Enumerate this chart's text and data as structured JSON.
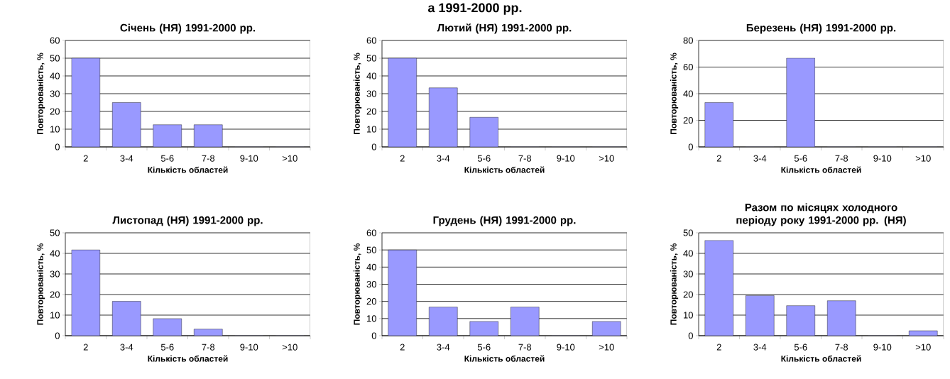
{
  "chart_data": [
    {
      "type": "other",
      "title": "а 1991-2000 рр."
    },
    {
      "type": "bar",
      "title": "Січень (НЯ) 1991-2000 рр.",
      "xlabel": "Кількість областей",
      "ylabel": "Повторюваність, %",
      "categories": [
        "2",
        "3-4",
        "5-6",
        "7-8",
        "9-10",
        ">10"
      ],
      "values": [
        50,
        25,
        12.5,
        12.5,
        0,
        0
      ],
      "color": "#9999ff",
      "ylim": [
        0,
        60
      ],
      "yticks": [
        0,
        10,
        20,
        30,
        40,
        50,
        60
      ],
      "grid": "y"
    },
    {
      "type": "bar",
      "title": "Лютий (НЯ) 1991-2000 рр.",
      "xlabel": "Кількість областей",
      "ylabel": "Повторюваність, %",
      "categories": [
        "2",
        "3-4",
        "5-6",
        "7-8",
        "9-10",
        ">10"
      ],
      "values": [
        50,
        33.3,
        16.7,
        0,
        0,
        0
      ],
      "color": "#9999ff",
      "ylim": [
        0,
        60
      ],
      "yticks": [
        0,
        10,
        20,
        30,
        40,
        50,
        60
      ],
      "grid": "y"
    },
    {
      "type": "bar",
      "title": "Березень (НЯ) 1991-2000 рр.",
      "xlabel": "Кількість областей",
      "ylabel": "Повторюваність, %",
      "categories": [
        "2",
        "3-4",
        "5-6",
        "7-8",
        "9-10",
        ">10"
      ],
      "values": [
        33.3,
        0,
        66.7,
        0,
        0,
        0
      ],
      "color": "#9999ff",
      "ylim": [
        0,
        80
      ],
      "yticks": [
        0,
        20,
        40,
        60,
        80
      ],
      "grid": "y"
    },
    {
      "type": "bar",
      "title": "Листопад (НЯ) 1991-2000 рр.",
      "xlabel": "Кількість областей",
      "ylabel": "Повторюваність, %",
      "categories": [
        "2",
        "3-4",
        "5-6",
        "7-8",
        "9-10",
        ">10"
      ],
      "values": [
        41.7,
        16.7,
        8.3,
        3.2,
        0,
        0
      ],
      "color": "#9999ff",
      "ylim": [
        0,
        50
      ],
      "yticks": [
        0,
        10,
        20,
        30,
        40,
        50
      ],
      "grid": "y"
    },
    {
      "type": "bar",
      "title": "Грудень (НЯ) 1991-2000 рр.",
      "xlabel": "Кількість областей",
      "ylabel": "Повторюваність, %",
      "categories": [
        "2",
        "3-4",
        "5-6",
        "7-8",
        "9-10",
        ">10"
      ],
      "values": [
        50,
        16.7,
        8.3,
        16.7,
        0,
        8.3
      ],
      "color": "#9999ff",
      "ylim": [
        0,
        60
      ],
      "yticks": [
        0,
        10,
        20,
        30,
        40,
        50,
        60
      ],
      "grid": "y"
    },
    {
      "type": "bar",
      "title": "Разом по місяцях холодного періоду року 1991-2000 рр. (НЯ)",
      "xlabel": "Кількість областей",
      "ylabel": "Повторюваність, %",
      "categories": [
        "2",
        "3-4",
        "5-6",
        "7-8",
        "9-10",
        ">10"
      ],
      "values": [
        46.3,
        19.5,
        14.6,
        17,
        0,
        2.4
      ],
      "color": "#9999ff",
      "ylim": [
        0,
        50
      ],
      "yticks": [
        0,
        10,
        20,
        30,
        40,
        50
      ],
      "grid": "y"
    }
  ]
}
